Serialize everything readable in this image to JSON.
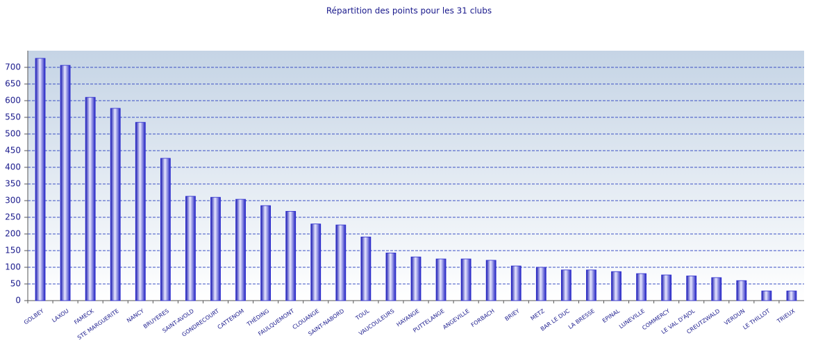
{
  "chart_data": {
    "type": "bar",
    "title": "Répartition des points pour les 31 clubs",
    "categories": [
      "GOLBEY",
      "LAXOU",
      "FAMECK",
      "STE MARGUERITE",
      "NANCY",
      "BRUYERES",
      "SAINT-AVOLD",
      "GONDRECOURT",
      "CATTENOM",
      "THÉDING",
      "FAULQUEMONT",
      "CLOUANGE",
      "SAINT-NABORD",
      "TOUL",
      "VAUCOULEURS",
      "HAYANGE",
      "PUTTELANGE",
      "ANGEVILLE",
      "FORBACH",
      "BRIEY",
      "METZ",
      "BAR LE DUC",
      "LA BRESSE",
      "EPINAL",
      "LUNEVILLE",
      "COMMERCY",
      "LE VAL D'AJOL",
      "CREUTZWALD",
      "VERDUN",
      "LE THILLOT",
      "TRIEUX"
    ],
    "values": [
      727,
      706,
      610,
      577,
      535,
      427,
      313,
      310,
      304,
      285,
      268,
      230,
      227,
      191,
      143,
      131,
      125,
      125,
      121,
      104,
      100,
      92,
      92,
      87,
      81,
      77,
      74,
      69,
      60,
      29,
      29
    ],
    "color": "#2a2ad0",
    "ylim": [
      0,
      750
    ],
    "yticks": [
      0,
      50,
      100,
      150,
      200,
      250,
      300,
      350,
      400,
      450,
      500,
      550,
      600,
      650,
      700
    ],
    "grid": true
  }
}
